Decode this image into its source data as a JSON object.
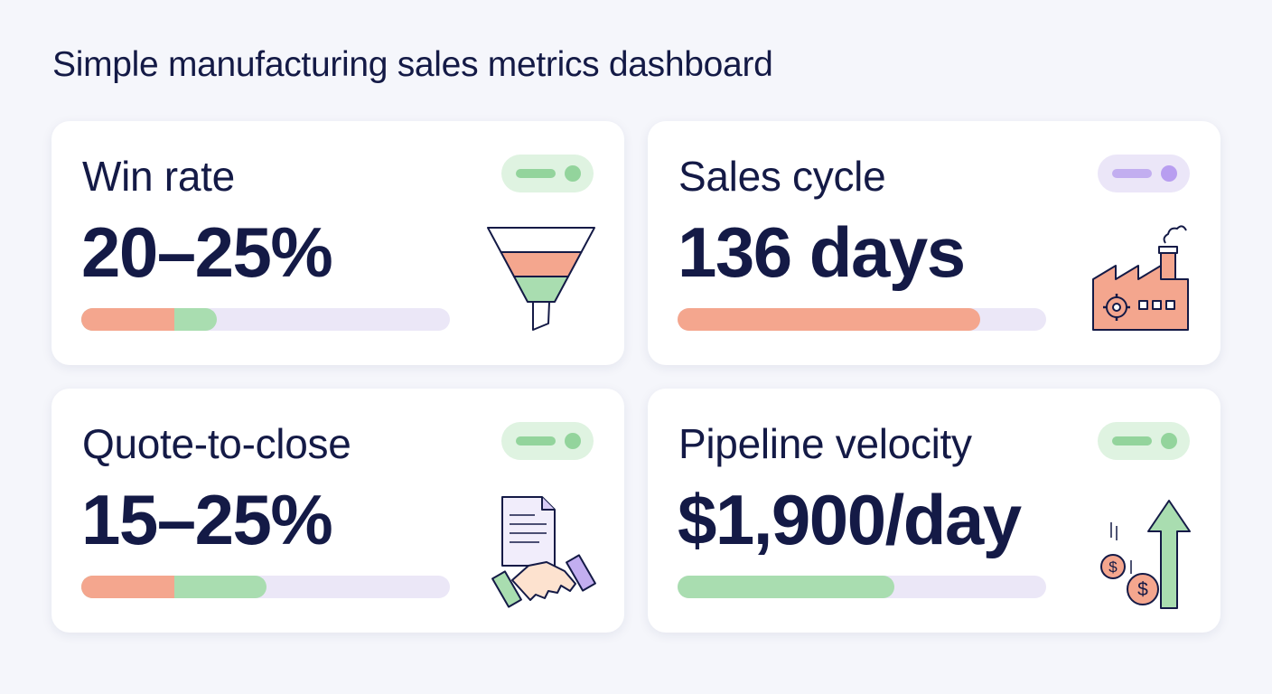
{
  "header": {
    "title": "Simple manufacturing sales metrics dashboard"
  },
  "cards": [
    {
      "label": "Win rate",
      "value": "20–25%"
    },
    {
      "label": "Sales cycle",
      "value": "136 days"
    },
    {
      "label": "Quote-to-close",
      "value": "15–25%"
    },
    {
      "label": "Pipeline velocity",
      "value": "$1,900/day"
    }
  ]
}
